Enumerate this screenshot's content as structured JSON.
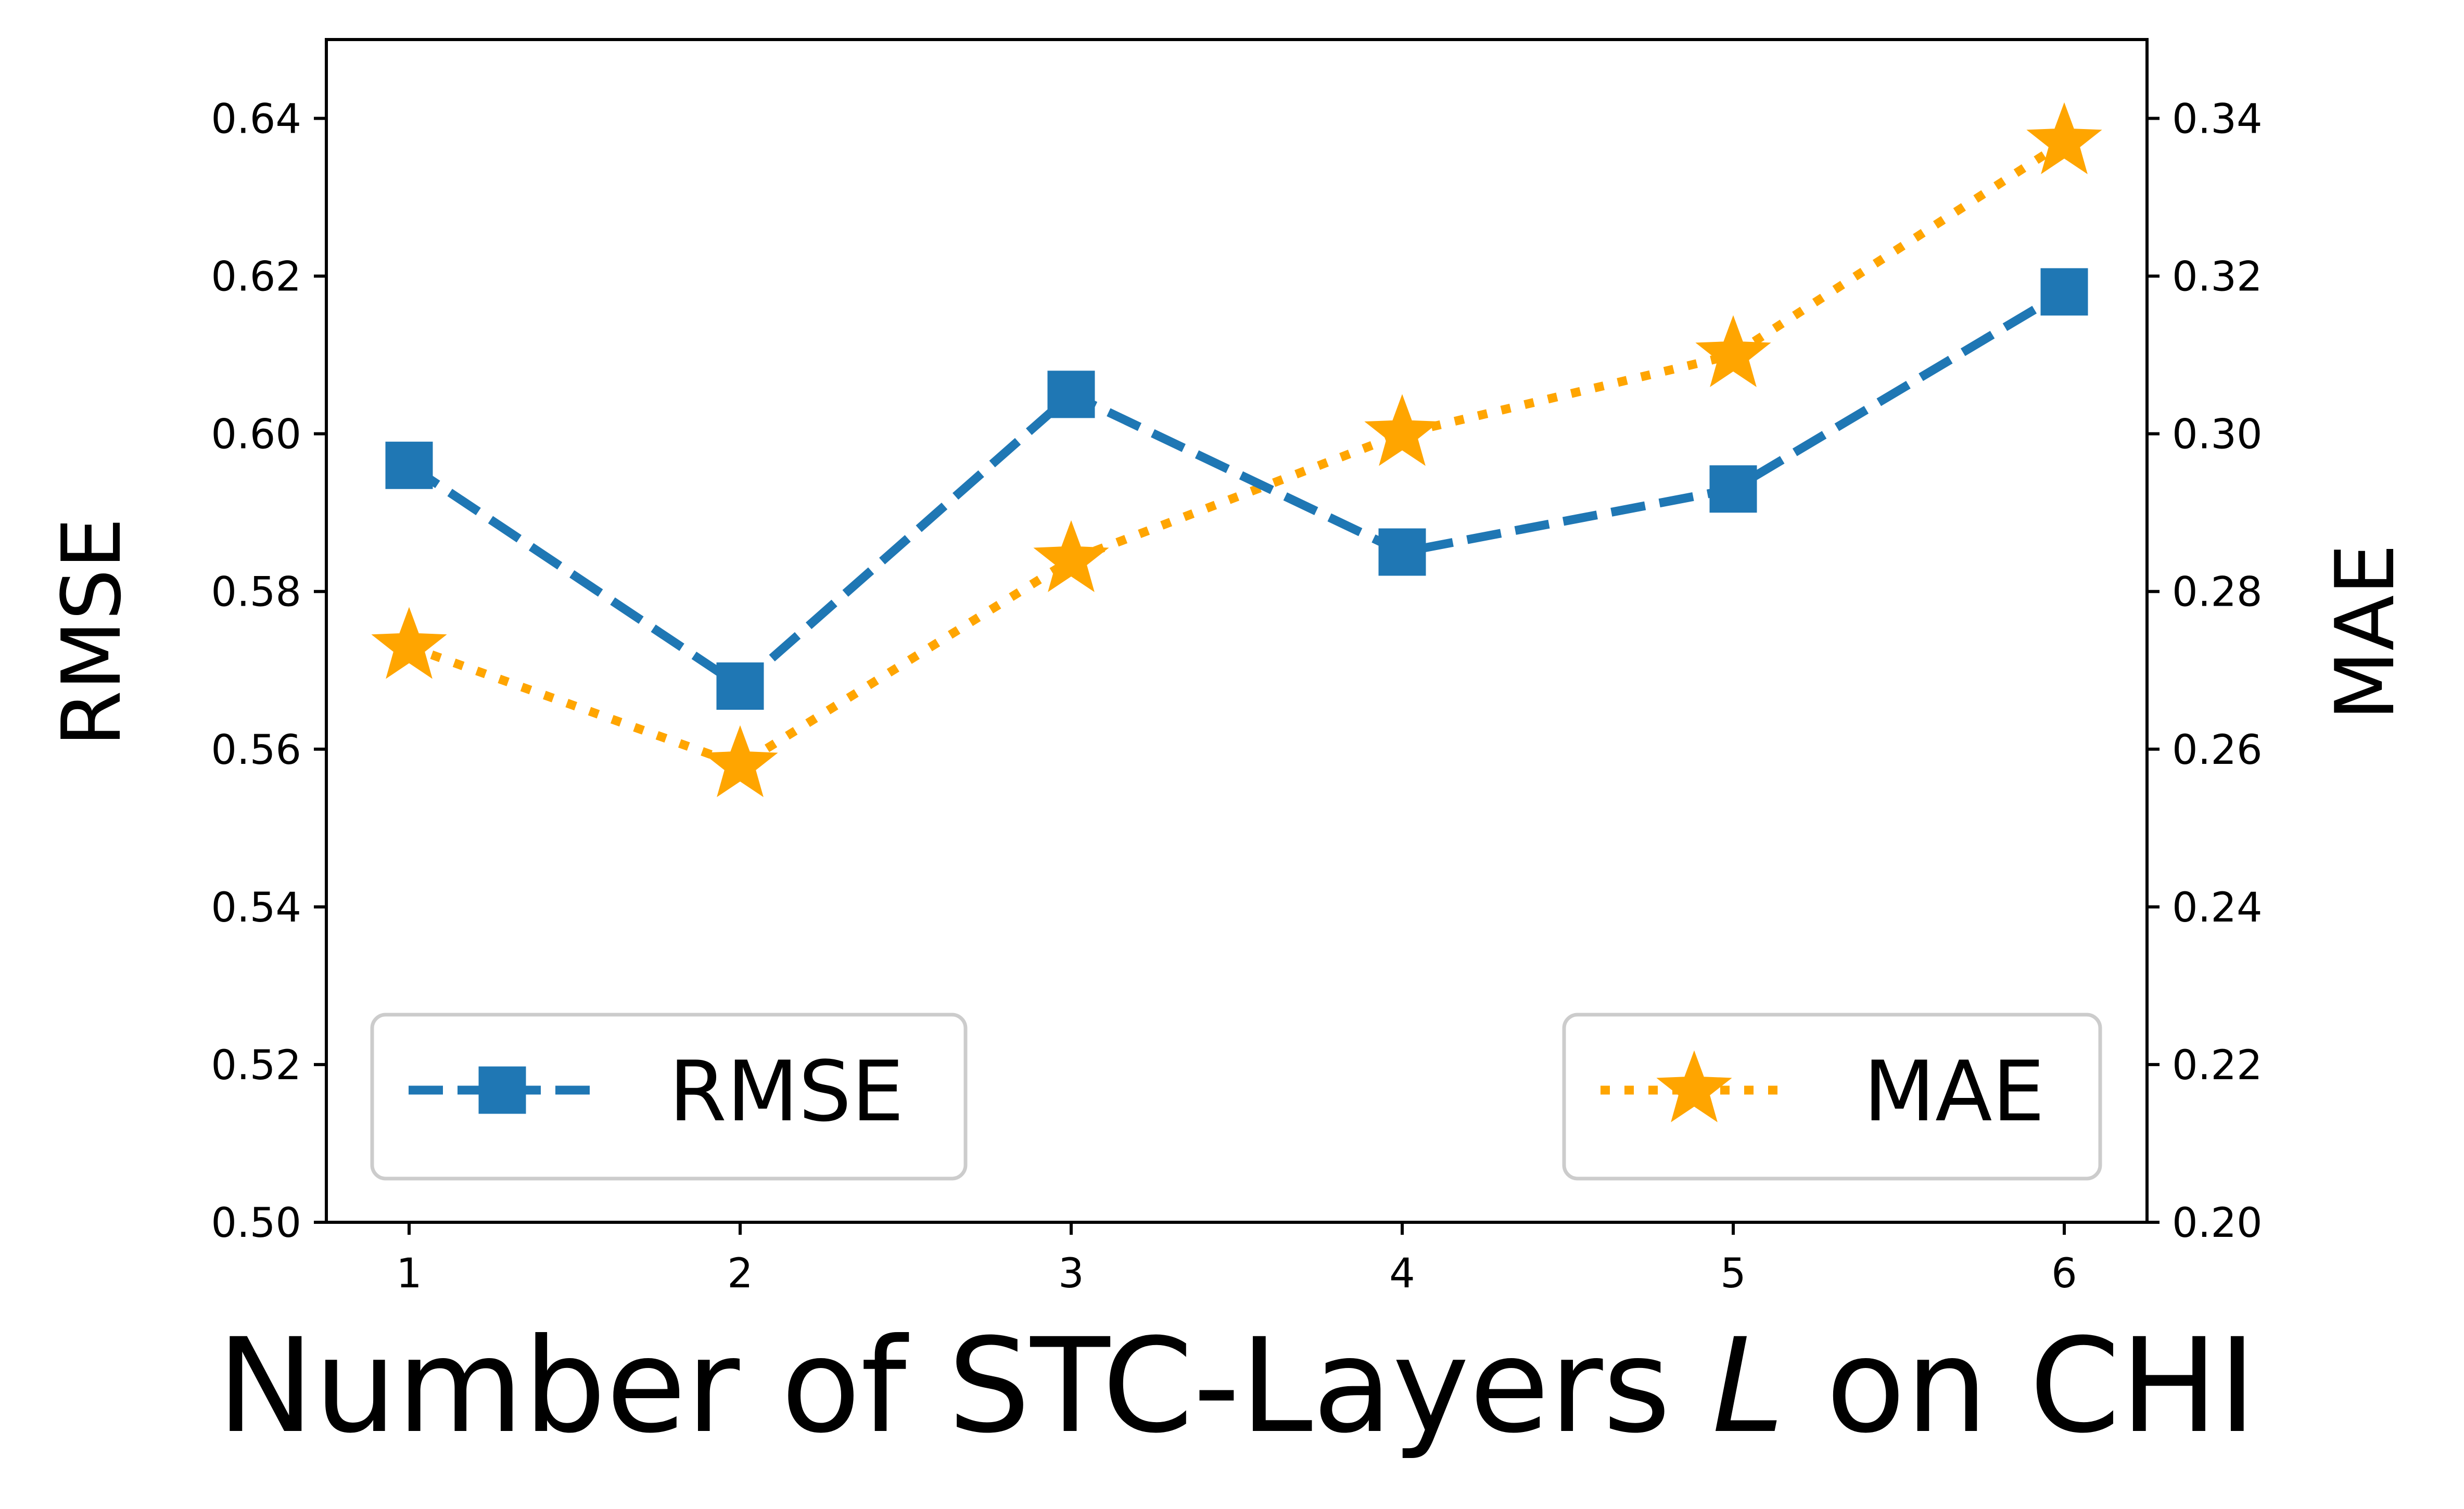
{
  "chart_data": {
    "type": "line",
    "x": [
      1,
      2,
      3,
      4,
      5,
      6
    ],
    "xlabel": "Number of STC-Layers",
    "xlabel_var": "L",
    "xlabel_suffix": "on CHI",
    "series": [
      {
        "name": "RMSE",
        "axis": "left",
        "values": [
          0.596,
          0.568,
          0.605,
          0.585,
          0.593,
          0.618
        ],
        "color": "#1f77b4",
        "line_style": "dashed",
        "marker": "square",
        "legend_position": "lower-left"
      },
      {
        "name": "MAE",
        "axis": "right",
        "values": [
          0.273,
          0.258,
          0.284,
          0.3,
          0.31,
          0.337
        ],
        "color": "#ffa500",
        "line_style": "dotted",
        "marker": "star",
        "legend_position": "lower-right"
      }
    ],
    "ylabel_left": "RMSE",
    "ylabel_right": "MAE",
    "ylim_left": [
      0.5,
      0.65
    ],
    "ylim_right": [
      0.2,
      0.35
    ],
    "xlim": [
      0.75,
      6.25
    ],
    "xticks": [
      "1",
      "2",
      "3",
      "4",
      "5",
      "6"
    ],
    "yticks_left": [
      "0.50",
      "0.52",
      "0.54",
      "0.56",
      "0.58",
      "0.60",
      "0.62",
      "0.64"
    ],
    "yticks_right": [
      "0.20",
      "0.22",
      "0.24",
      "0.26",
      "0.28",
      "0.30",
      "0.32",
      "0.34"
    ],
    "grid": false
  }
}
